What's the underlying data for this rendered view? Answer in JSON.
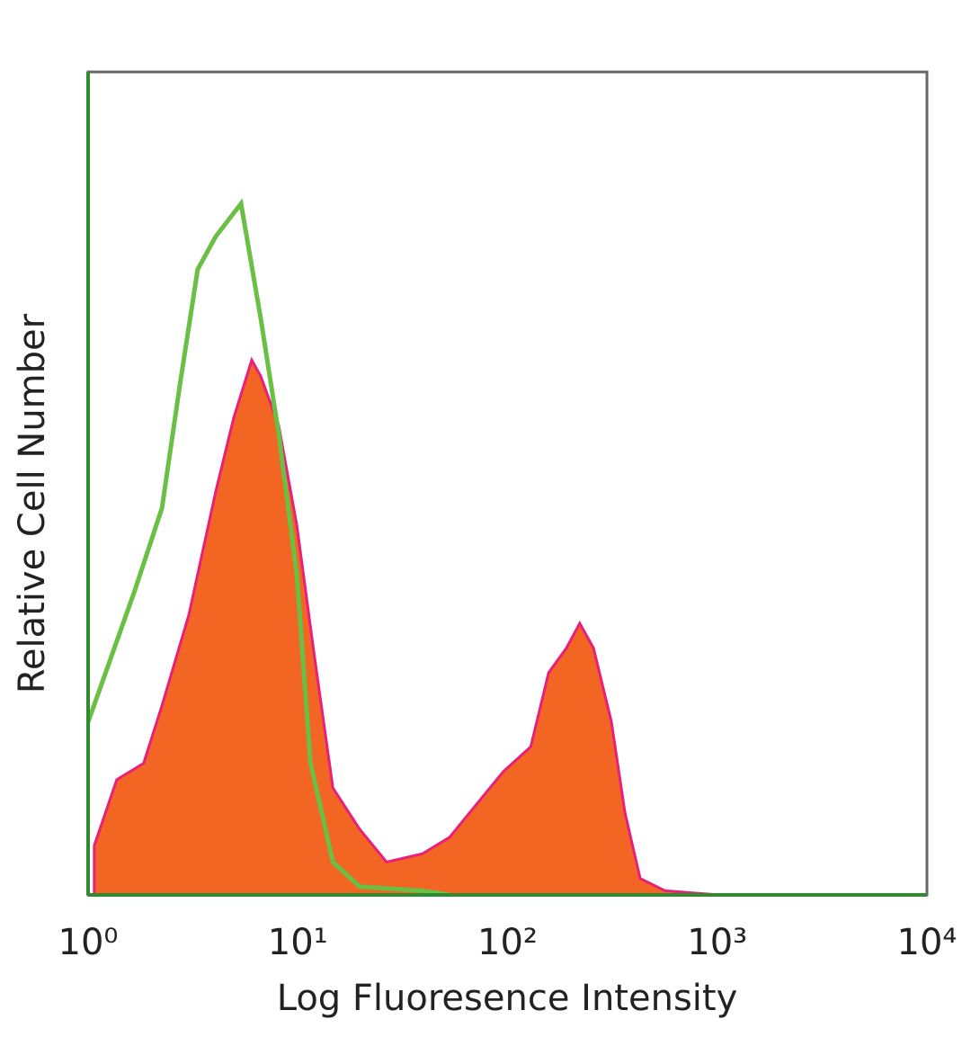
{
  "chart_data": {
    "type": "histogram-overlay",
    "xlabel": "Log Fluoresence Intensity",
    "ylabel": "Relative Cell Number",
    "xscale": "log",
    "xlim": [
      1,
      10000
    ],
    "ylim": [
      0,
      100
    ],
    "xticks": [
      {
        "value": 1,
        "label": "10⁰"
      },
      {
        "value": 10,
        "label": "10¹"
      },
      {
        "value": 100,
        "label": "10²"
      },
      {
        "value": 1000,
        "label": "10³"
      },
      {
        "value": 10000,
        "label": "10⁴"
      }
    ],
    "series": [
      {
        "style": "filled",
        "color": "#f26522",
        "edge_color": "#e8207a",
        "x": [
          1.07,
          1.37,
          1.84,
          2.25,
          3.02,
          4.06,
          4.95,
          6.03,
          6.66,
          8.11,
          9.88,
          12.0,
          14.7,
          19.7,
          26.5,
          39.3,
          52.9,
          71.1,
          95.6,
          129,
          157,
          191,
          221,
          257,
          313,
          363,
          429,
          565,
          1020
        ],
        "values": [
          6,
          14,
          16,
          23,
          34,
          49,
          58,
          65,
          63,
          57,
          45,
          29,
          13,
          8,
          4,
          5,
          7,
          11,
          15,
          18,
          27,
          30,
          33,
          30,
          21,
          10,
          2,
          0.5,
          0
        ]
      },
      {
        "style": "outline",
        "color": "#6abf45",
        "x": [
          1.0,
          1.67,
          2.25,
          2.74,
          3.33,
          4.06,
          5.36,
          6.66,
          8.11,
          9.88,
          11.5,
          14.7,
          19.7,
          39.3,
          52.9
        ],
        "values": [
          21,
          37,
          47,
          62,
          76,
          80,
          84,
          70,
          56,
          39,
          16,
          4,
          1,
          0.5,
          0
        ]
      }
    ]
  }
}
